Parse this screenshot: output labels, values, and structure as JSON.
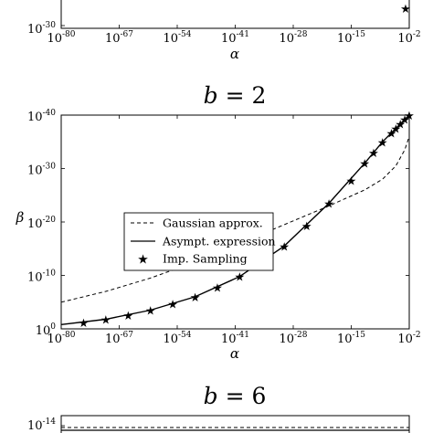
{
  "chart_data": [
    {
      "type": "line",
      "partial": "bottom",
      "y_ticks": [
        {
          "exp": "-30"
        }
      ],
      "x_ticks": [
        {
          "exp": "-80"
        },
        {
          "exp": "-67"
        },
        {
          "exp": "-54"
        },
        {
          "exp": "-41"
        },
        {
          "exp": "-28"
        },
        {
          "exp": "-15"
        },
        {
          "exp": "-2"
        }
      ],
      "xlabel": "α",
      "xscale": "log",
      "xlim_exp": [
        -80,
        -2
      ],
      "series": [
        {
          "name": "Imp. Sampling",
          "style": "star",
          "points": [
            [
              -2,
              -27.5
            ]
          ]
        }
      ]
    },
    {
      "type": "line",
      "title_prefix": "b",
      "title_value": "2",
      "xlabel": "α",
      "ylabel": "β",
      "xscale": "log",
      "yscale": "log",
      "xlim_exp": [
        -80,
        -2
      ],
      "ylim_exp": [
        -40,
        0
      ],
      "x_ticks": [
        {
          "exp": "-80"
        },
        {
          "exp": "-67"
        },
        {
          "exp": "-54"
        },
        {
          "exp": "-41"
        },
        {
          "exp": "-28"
        },
        {
          "exp": "-15"
        },
        {
          "exp": "-2"
        }
      ],
      "y_ticks": [
        {
          "exp": "0"
        },
        {
          "exp": "-10"
        },
        {
          "exp": "-20"
        },
        {
          "exp": "-30"
        },
        {
          "exp": "-40"
        }
      ],
      "legend_position": "center-left",
      "legend": [
        "Gaussian approx.",
        "Asympt. expression",
        "Imp. Sampling"
      ],
      "series": [
        {
          "name": "Gaussian approx.",
          "style": "dashed",
          "x_exp": [
            -80,
            -70,
            -60,
            -50,
            -40,
            -30,
            -20,
            -12,
            -8,
            -5,
            -3,
            -2
          ],
          "y_exp": [
            -5,
            -7,
            -9.5,
            -12.5,
            -16,
            -19.5,
            -23,
            -26,
            -28,
            -30.5,
            -33.5,
            -36
          ]
        },
        {
          "name": "Asympt. expression",
          "style": "solid",
          "x_exp": [
            -80,
            -70,
            -60,
            -50,
            -40,
            -30,
            -20,
            -12,
            -8,
            -5,
            -3,
            -2
          ],
          "y_exp": [
            -0.8,
            -1.8,
            -3.5,
            -6.0,
            -9.8,
            -15.5,
            -23.5,
            -31.0,
            -35.0,
            -37.5,
            -39.2,
            -40
          ]
        },
        {
          "name": "Imp. Sampling",
          "style": "star",
          "x_exp": [
            -75,
            -70,
            -65,
            -60,
            -55,
            -50,
            -45,
            -40,
            -35,
            -30,
            -25,
            -20,
            -15,
            -12,
            -10,
            -8,
            -6,
            -5,
            -4,
            -3,
            -2
          ],
          "y_exp": [
            -1.2,
            -1.8,
            -2.6,
            -3.5,
            -4.7,
            -6.0,
            -7.8,
            -9.8,
            -12.5,
            -15.5,
            -19.3,
            -23.5,
            -27.8,
            -31.0,
            -33.0,
            -35.0,
            -36.7,
            -37.5,
            -38.4,
            -39.2,
            -40
          ]
        }
      ]
    },
    {
      "type": "line",
      "partial": "top",
      "title_prefix": "b",
      "title_value": "6",
      "y_ticks": [
        {
          "exp": "-14"
        }
      ],
      "series": [
        {
          "name": "Gaussian approx.",
          "style": "dashed",
          "partial": true
        },
        {
          "name": "Asympt. expression",
          "style": "solid",
          "partial": true
        }
      ]
    }
  ]
}
